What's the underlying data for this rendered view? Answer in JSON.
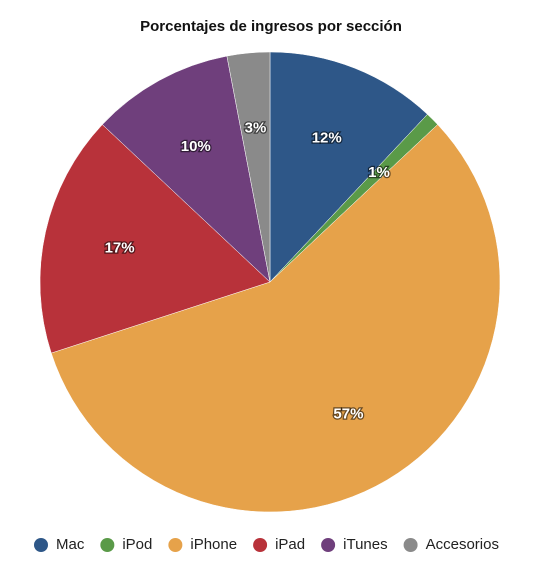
{
  "chart_data": {
    "type": "pie",
    "title": "Porcentajes de ingresos por sección",
    "categories": [
      "Mac",
      "iPod",
      "iPhone",
      "iPad",
      "iTunes",
      "Accesorios"
    ],
    "values": [
      12,
      1,
      57,
      17,
      10,
      3
    ],
    "value_labels": [
      "12%",
      "1%",
      "57%",
      "17%",
      "10%",
      "3%"
    ],
    "colors": [
      "#2e5788",
      "#5a9a48",
      "#e6a24a",
      "#b8323a",
      "#6f3f7c",
      "#8a8a8a"
    ],
    "legend": "bottom"
  }
}
